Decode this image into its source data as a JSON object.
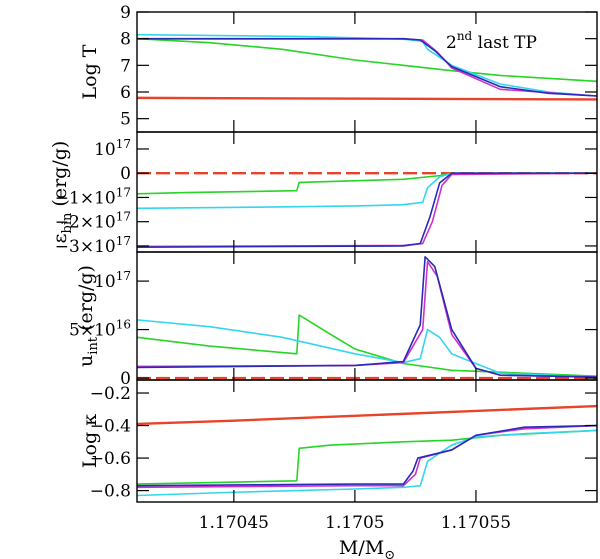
{
  "chart_data": {
    "type": "line",
    "x_axis": {
      "label": "M/M",
      "label_subscript": "⊙",
      "range": [
        1.17041,
        1.1706
      ],
      "ticks": [
        {
          "value": 1.17045,
          "label": "1.17045"
        },
        {
          "value": 1.1705,
          "label": "1.1705"
        },
        {
          "value": 1.17055,
          "label": "1.17055"
        }
      ]
    },
    "colors": {
      "red": "#e8442a",
      "green": "#27d427",
      "cyan": "#33d6ee",
      "blue": "#2a2ab8",
      "magenta": "#cc33cc"
    },
    "panels": [
      {
        "id": "logT",
        "ylabel": "Log T",
        "ylim": [
          4.5,
          9
        ],
        "ticks": [
          {
            "value": 5,
            "label": "5"
          },
          {
            "value": 6,
            "label": "6"
          },
          {
            "value": 7,
            "label": "7"
          },
          {
            "value": 8,
            "label": "8"
          },
          {
            "value": 9,
            "label": "9"
          }
        ],
        "annotation": {
          "pre": "2",
          "sup": "nd",
          "post": " last TP"
        },
        "series": [
          {
            "color": "red",
            "points": [
              [
                1.17041,
                5.78
              ],
              [
                1.1706,
                5.72
              ]
            ]
          },
          {
            "color": "green",
            "points": [
              [
                1.17041,
                8.0
              ],
              [
                1.17044,
                7.85
              ],
              [
                1.17047,
                7.6
              ],
              [
                1.1705,
                7.2
              ],
              [
                1.17052,
                7.0
              ],
              [
                1.17054,
                6.8
              ],
              [
                1.17056,
                6.62
              ],
              [
                1.1706,
                6.4
              ]
            ]
          },
          {
            "color": "cyan",
            "points": [
              [
                1.17041,
                8.15
              ],
              [
                1.17048,
                8.08
              ],
              [
                1.17052,
                7.98
              ],
              [
                1.170528,
                7.9
              ],
              [
                1.17053,
                7.6
              ],
              [
                1.17054,
                7.0
              ],
              [
                1.17056,
                6.3
              ],
              [
                1.17058,
                6.0
              ],
              [
                1.1706,
                5.85
              ]
            ]
          },
          {
            "color": "magenta",
            "points": [
              [
                1.17041,
                7.99
              ],
              [
                1.17052,
                7.99
              ],
              [
                1.170528,
                7.95
              ],
              [
                1.170534,
                7.5
              ],
              [
                1.17054,
                6.9
              ],
              [
                1.17056,
                6.1
              ],
              [
                1.1706,
                5.85
              ]
            ]
          },
          {
            "color": "blue",
            "points": [
              [
                1.17041,
                8.0
              ],
              [
                1.17052,
                8.0
              ],
              [
                1.170527,
                7.95
              ],
              [
                1.170533,
                7.55
              ],
              [
                1.17054,
                6.95
              ],
              [
                1.17056,
                6.2
              ],
              [
                1.17058,
                5.95
              ],
              [
                1.1706,
                5.85
              ]
            ]
          }
        ]
      },
      {
        "id": "ebin",
        "ylabel_main": "(erg/g)",
        "ylabel_symbol": "ε",
        "ylabel_sub": "bin",
        "ylim": [
          -3.25e+17,
          1.7e+17
        ],
        "ticks": [
          {
            "value": 1e+17,
            "mant": "10",
            "exp": "17"
          },
          {
            "value": 0,
            "mant": "0",
            "exp": ""
          },
          {
            "value": -1e+17,
            "mant": "−1×10",
            "exp": "17"
          },
          {
            "value": -2e+17,
            "mant": "−2×10",
            "exp": "17"
          },
          {
            "value": -3e+17,
            "mant": "−3×10",
            "exp": "17"
          }
        ],
        "series": [
          {
            "color": "red",
            "dashed": true,
            "points": [
              [
                1.17041,
                0
              ],
              [
                1.1706,
                0
              ]
            ]
          },
          {
            "color": "green",
            "points": [
              [
                1.17041,
                -8.5e+16
              ],
              [
                1.17043,
                -8e+16
              ],
              [
                1.170476,
                -7.2e+16
              ],
              [
                1.170477,
                -3.8e+16
              ],
              [
                1.17052,
                -2.5e+16
              ],
              [
                1.170535,
                -1e+16
              ],
              [
                1.17054,
                0
              ],
              [
                1.1706,
                0
              ]
            ]
          },
          {
            "color": "cyan",
            "points": [
              [
                1.17041,
                -1.45e+17
              ],
              [
                1.17046,
                -1.4e+17
              ],
              [
                1.1705,
                -1.35e+17
              ],
              [
                1.17052,
                -1.3e+17
              ],
              [
                1.170528,
                -1.2e+17
              ],
              [
                1.17053,
                -6e+16
              ],
              [
                1.170535,
                -1.5e+16
              ],
              [
                1.17054,
                0
              ],
              [
                1.1706,
                0
              ]
            ]
          },
          {
            "color": "magenta",
            "points": [
              [
                1.17041,
                -3.02e+17
              ],
              [
                1.17052,
                -2.98e+17
              ],
              [
                1.170528,
                -2.9e+17
              ],
              [
                1.170532,
                -2e+17
              ],
              [
                1.170536,
                -5e+16
              ],
              [
                1.17054,
                -5000000000000000.0
              ],
              [
                1.1706,
                0
              ]
            ]
          },
          {
            "color": "blue",
            "points": [
              [
                1.17041,
                -3.05e+17
              ],
              [
                1.17052,
                -3e+17
              ],
              [
                1.170527,
                -2.9e+17
              ],
              [
                1.170531,
                -1.8e+17
              ],
              [
                1.170535,
                -4e+16
              ],
              [
                1.17054,
                0
              ],
              [
                1.1706,
                0
              ]
            ]
          }
        ]
      },
      {
        "id": "uint",
        "ylabel_main": "(erg/g)",
        "ylabel_symbol": "u",
        "ylabel_sub": "int",
        "ylim": [
          -2000000000000000.0,
          1.3e+17
        ],
        "ticks": [
          {
            "value": 1e+17,
            "mant": "10",
            "exp": "17"
          },
          {
            "value": 5e+16,
            "mant": "5×10",
            "exp": "16"
          },
          {
            "value": 0,
            "mant": "0",
            "exp": ""
          }
        ],
        "series": [
          {
            "color": "red",
            "dashed": true,
            "points": [
              [
                1.17041,
                0
              ],
              [
                1.1706,
                0
              ]
            ]
          },
          {
            "color": "green",
            "points": [
              [
                1.17041,
                4.2e+16
              ],
              [
                1.17044,
                3.3e+16
              ],
              [
                1.170476,
                2.5e+16
              ],
              [
                1.170477,
                6.5e+16
              ],
              [
                1.17049,
                4.5e+16
              ],
              [
                1.1705,
                3e+16
              ],
              [
                1.17052,
                1.5e+16
              ],
              [
                1.17054,
                8000000000000000.0
              ],
              [
                1.1706,
                2000000000000000.0
              ]
            ]
          },
          {
            "color": "cyan",
            "points": [
              [
                1.17041,
                6e+16
              ],
              [
                1.17044,
                5.3e+16
              ],
              [
                1.17047,
                4.2e+16
              ],
              [
                1.1705,
                2.5e+16
              ],
              [
                1.17052,
                1.6e+16
              ],
              [
                1.170527,
                2e+16
              ],
              [
                1.17053,
                5e+16
              ],
              [
                1.170535,
                4.2e+16
              ],
              [
                1.17054,
                2.5e+16
              ],
              [
                1.17056,
                5000000000000000.0
              ],
              [
                1.1706,
                1000000000000000.0
              ]
            ]
          },
          {
            "color": "magenta",
            "points": [
              [
                1.17041,
                1.2e+16
              ],
              [
                1.1705,
                1.3e+16
              ],
              [
                1.17052,
                1.6e+16
              ],
              [
                1.170528,
                5e+16
              ],
              [
                1.17053,
                1.2e+17
              ],
              [
                1.170534,
                1.05e+17
              ],
              [
                1.17054,
                4.5e+16
              ],
              [
                1.17055,
                1e+16
              ],
              [
                1.17056,
                3000000000000000.0
              ],
              [
                1.1706,
                1000000000000000.0
              ]
            ]
          },
          {
            "color": "blue",
            "points": [
              [
                1.17041,
                1.1e+16
              ],
              [
                1.1705,
                1.3e+16
              ],
              [
                1.17052,
                1.7e+16
              ],
              [
                1.170527,
                5.5e+16
              ],
              [
                1.170529,
                1.25e+17
              ],
              [
                1.170533,
                1.15e+17
              ],
              [
                1.17054,
                5e+16
              ],
              [
                1.17055,
                1e+16
              ],
              [
                1.17056,
                3000000000000000.0
              ],
              [
                1.1706,
                1000000000000000.0
              ]
            ]
          }
        ]
      },
      {
        "id": "logkappa",
        "ylabel": "Log κ",
        "ylim": [
          -0.87,
          -0.12
        ],
        "ticks": [
          {
            "value": -0.2,
            "label": "−0.2"
          },
          {
            "value": -0.4,
            "label": "−0.4"
          },
          {
            "value": -0.6,
            "label": "−0.6"
          },
          {
            "value": -0.8,
            "label": "−0.8"
          }
        ],
        "series": [
          {
            "color": "red",
            "points": [
              [
                1.17041,
                -0.39
              ],
              [
                1.17045,
                -0.37
              ],
              [
                1.1705,
                -0.34
              ],
              [
                1.17055,
                -0.31
              ],
              [
                1.1706,
                -0.28
              ]
            ]
          },
          {
            "color": "green",
            "points": [
              [
                1.17041,
                -0.76
              ],
              [
                1.170476,
                -0.74
              ],
              [
                1.170477,
                -0.54
              ],
              [
                1.17049,
                -0.52
              ],
              [
                1.17052,
                -0.5
              ],
              [
                1.17054,
                -0.49
              ],
              [
                1.17056,
                -0.46
              ],
              [
                1.1706,
                -0.43
              ]
            ]
          },
          {
            "color": "cyan",
            "points": [
              [
                1.17041,
                -0.83
              ],
              [
                1.17045,
                -0.81
              ],
              [
                1.1705,
                -0.79
              ],
              [
                1.17052,
                -0.78
              ],
              [
                1.170527,
                -0.77
              ],
              [
                1.17053,
                -0.62
              ],
              [
                1.17054,
                -0.52
              ],
              [
                1.17055,
                -0.47
              ],
              [
                1.17057,
                -0.45
              ],
              [
                1.1706,
                -0.43
              ]
            ]
          },
          {
            "color": "magenta",
            "points": [
              [
                1.17041,
                -0.78
              ],
              [
                1.1705,
                -0.77
              ],
              [
                1.17052,
                -0.77
              ],
              [
                1.170525,
                -0.7
              ],
              [
                1.170527,
                -0.6
              ],
              [
                1.17054,
                -0.55
              ],
              [
                1.17055,
                -0.46
              ],
              [
                1.17057,
                -0.42
              ],
              [
                1.1706,
                -0.4
              ]
            ]
          },
          {
            "color": "blue",
            "points": [
              [
                1.17041,
                -0.77
              ],
              [
                1.1705,
                -0.76
              ],
              [
                1.17052,
                -0.76
              ],
              [
                1.170524,
                -0.68
              ],
              [
                1.170526,
                -0.6
              ],
              [
                1.17054,
                -0.55
              ],
              [
                1.17055,
                -0.46
              ],
              [
                1.17057,
                -0.41
              ],
              [
                1.1706,
                -0.4
              ]
            ]
          }
        ]
      }
    ]
  }
}
